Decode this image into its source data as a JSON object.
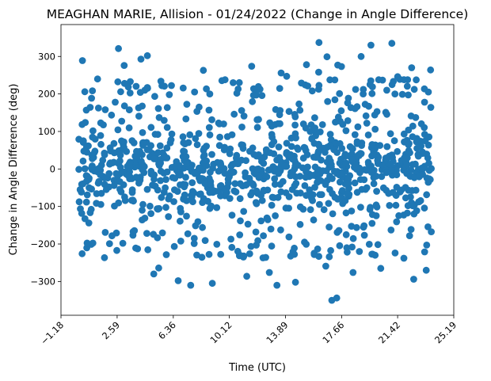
{
  "chart_data": {
    "type": "scatter",
    "title": "MEAGHAN MARIE, Allision - 01/24/2022 (Change in Angle Difference)",
    "xlabel": "Time (UTC)",
    "ylabel": "Change in Angle Difference (deg)",
    "xlim": [
      -1.18,
      25.19
    ],
    "ylim": [
      -390,
      385
    ],
    "x_ticks": [
      -1.18,
      2.59,
      6.36,
      10.12,
      13.89,
      17.66,
      21.42,
      25.19
    ],
    "x_tick_labels": [
      "−1.18",
      "2.59",
      "6.36",
      "10.12",
      "13.89",
      "17.66",
      "21.42",
      "25.19"
    ],
    "y_ticks": [
      -300,
      -200,
      -100,
      0,
      100,
      200,
      300
    ],
    "y_tick_labels": [
      "−300",
      "−200",
      "−100",
      "0",
      "100",
      "200",
      "300"
    ],
    "grid": false,
    "marker_color": "#1f77b4",
    "sample_points": {
      "x": [
        0.02,
        0.24,
        0.26,
        0.52,
        0.45,
        0.87,
        1.26,
        2.08,
        2.46,
        2.68,
        3.06,
        3.47,
        3.84,
        4.19,
        4.45,
        4.62,
        4.87,
        5.05,
        5.38,
        5.53,
        5.6,
        6.69,
        7.53,
        8.09,
        8.38,
        8.81,
        8.98,
        10.38,
        10.63,
        11.29,
        11.62,
        12.41,
        12.81,
        13.32,
        13.6,
        13.97,
        14.3,
        14.56,
        14.96,
        15.1,
        15.3,
        15.55,
        15.69,
        16.12,
        16.14,
        16.6,
        16.68,
        16.72,
        17.0,
        17.07,
        17.33,
        17.4,
        17.62,
        17.65,
        18.01,
        18.43,
        18.6,
        18.7,
        18.97,
        19.11,
        19.12,
        19.35,
        19.63,
        19.73,
        19.91,
        20.04,
        20.29,
        20.69,
        21.03,
        21.05,
        21.24,
        21.25,
        21.42,
        21.74,
        22.03,
        22.09,
        22.15,
        22.36,
        22.5,
        23.09,
        23.23,
        23.34,
        23.37,
        23.63
      ],
      "y": [
        -1,
        -226,
        289,
        157,
        124,
        3,
        -7,
        -199,
        178,
        321,
        276,
        233,
        -211,
        293,
        210,
        302,
        111,
        -280,
        -264,
        234,
        222,
        -298,
        -310,
        165,
        263,
        200,
        -305,
        230,
        202,
        -286,
        274,
        -178,
        -276,
        -310,
        256,
        247,
        60,
        -302,
        229,
        120,
        278,
        100,
        208,
        258,
        337,
        -259,
        299,
        180,
        -350,
        63,
        -344,
        277,
        18,
        273,
        -210,
        -276,
        212,
        166,
        300,
        200,
        212,
        122,
        330,
        219,
        106,
        153,
        -265,
        210,
        335,
        225,
        200,
        -224,
        246,
        199,
        -12,
        238,
        104,
        270,
        -294,
        45,
        178,
        -270,
        -203,
        264
      ]
    }
  }
}
